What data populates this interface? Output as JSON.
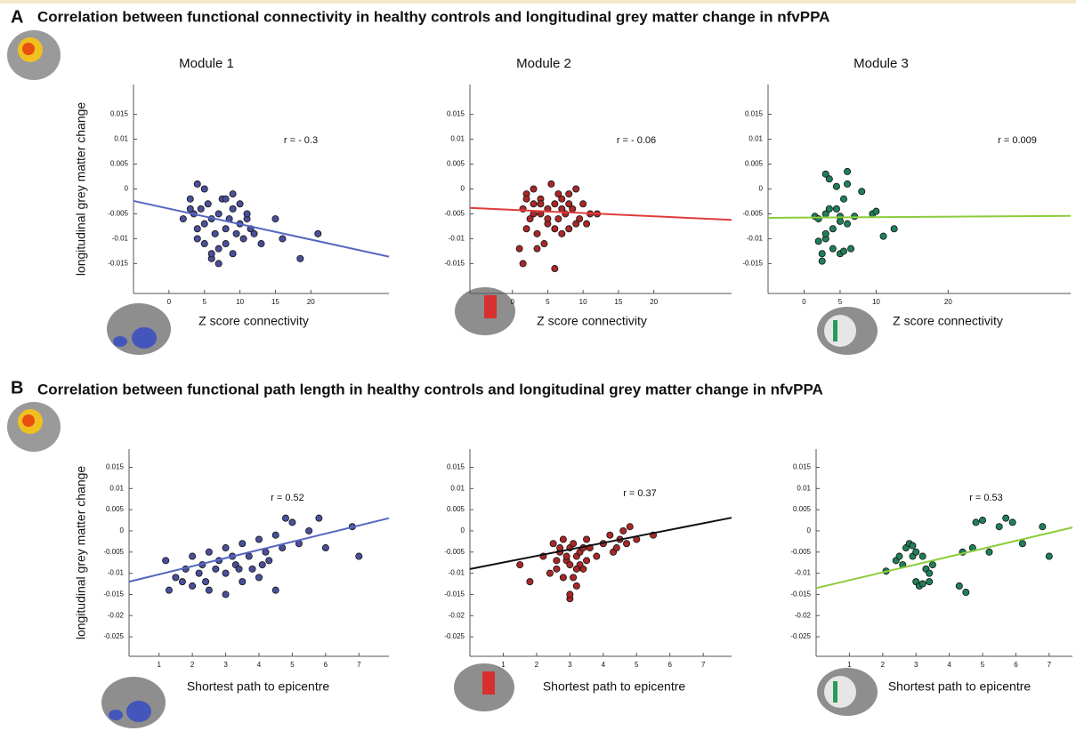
{
  "panels": [
    {
      "label": "A",
      "title": "Correlation between functional connectivity in healthy controls and longitudinal grey matter change in nfvPPA"
    },
    {
      "label": "B",
      "title": "Correlation between functional path length in healthy controls and longitudinal grey matter change in nfvPPA"
    }
  ],
  "chart_data": [
    {
      "type": "scatter",
      "title": "Module 1",
      "ylabel": "longitudinal grey matter change",
      "xlabel": "Z score connectivity",
      "annotation": "r = - 0.3",
      "xlim": [
        -5,
        31
      ],
      "ylim": [
        -0.021,
        0.021
      ],
      "xticks": [
        0,
        5,
        10,
        15,
        20
      ],
      "yticks": [
        0.015,
        0.01,
        0.005,
        0,
        -0.005,
        -0.01,
        -0.015
      ],
      "series": [
        {
          "color": "#4a4f9a",
          "x": [
            2,
            3,
            3.5,
            4,
            4,
            4.5,
            5,
            5,
            5.5,
            6,
            6,
            6.5,
            7,
            7,
            7.5,
            8,
            8,
            8.5,
            9,
            9,
            9.5,
            10,
            10,
            10.5,
            11,
            11.5,
            12,
            13,
            15,
            16,
            18.5,
            21,
            3,
            5,
            7,
            9,
            11,
            6,
            8,
            4
          ],
          "y": [
            -0.006,
            -0.002,
            -0.005,
            -0.008,
            0.001,
            -0.004,
            -0.007,
            -0.011,
            -0.003,
            -0.006,
            -0.014,
            -0.009,
            -0.005,
            -0.015,
            -0.002,
            -0.008,
            -0.011,
            -0.006,
            -0.004,
            -0.013,
            -0.009,
            -0.007,
            -0.003,
            -0.01,
            -0.006,
            -0.008,
            -0.009,
            -0.011,
            -0.006,
            -0.01,
            -0.014,
            -0.009,
            -0.004,
            0,
            -0.012,
            -0.001,
            -0.005,
            -0.013,
            -0.002,
            -0.01
          ]
        }
      ],
      "fit": {
        "color": "#5566c0",
        "x": [
          -5,
          31
        ],
        "y": [
          -0.0024,
          -0.0136
        ]
      }
    },
    {
      "type": "scatter",
      "title": "Module 2",
      "xlabel": "Z score connectivity",
      "annotation": "r = - 0.06",
      "xlim": [
        -6,
        31
      ],
      "ylim": [
        -0.021,
        0.021
      ],
      "xticks": [
        0,
        5,
        10,
        15,
        20
      ],
      "yticks": [
        0.015,
        0.01,
        0.005,
        0,
        -0.005,
        -0.01,
        -0.015
      ],
      "series": [
        {
          "color": "#a82828",
          "x": [
            1,
            1.5,
            2,
            2,
            2.5,
            3,
            3,
            3.5,
            4,
            4,
            4.5,
            5,
            5,
            5.5,
            6,
            6,
            6.5,
            7,
            7,
            7.5,
            8,
            8,
            8.5,
            9,
            9.5,
            10,
            10.5,
            11,
            12,
            1.5,
            2,
            3,
            4,
            5,
            6,
            7,
            8,
            9,
            3.5,
            6.5
          ],
          "y": [
            -0.012,
            -0.004,
            -0.001,
            -0.008,
            -0.006,
            0,
            -0.003,
            -0.009,
            -0.005,
            -0.002,
            -0.011,
            -0.004,
            -0.007,
            0.001,
            -0.003,
            -0.016,
            -0.006,
            -0.002,
            -0.009,
            -0.005,
            -0.001,
            -0.008,
            -0.004,
            0,
            -0.006,
            -0.003,
            -0.007,
            -0.005,
            -0.005,
            -0.015,
            -0.002,
            -0.005,
            -0.003,
            -0.006,
            -0.008,
            -0.004,
            -0.003,
            -0.007,
            -0.012,
            -0.001
          ]
        }
      ],
      "fit": {
        "color": "#e03c3c",
        "x": [
          -6,
          31
        ],
        "y": [
          -0.0038,
          -0.0062
        ]
      }
    },
    {
      "type": "scatter",
      "title": "Module 3",
      "xlabel": "Z score connectivity",
      "annotation": "r = 0.009",
      "xlim": [
        -5,
        37
      ],
      "ylim": [
        -0.021,
        0.021
      ],
      "xticks": [
        0,
        5,
        10,
        20
      ],
      "yticks": [
        0.015,
        0.01,
        0.005,
        0,
        -0.005,
        -0.01,
        -0.015
      ],
      "series": [
        {
          "color": "#1f8058",
          "x": [
            1.5,
            2,
            2.5,
            2.5,
            3,
            3,
            3,
            3.5,
            3.5,
            4,
            4,
            4.5,
            4.5,
            5,
            5,
            5.5,
            5.5,
            6,
            6,
            6,
            6.5,
            7,
            8,
            9.5,
            10,
            11,
            12.5,
            2,
            3,
            5
          ],
          "y": [
            -0.0055,
            -0.006,
            -0.013,
            -0.0145,
            0.003,
            -0.005,
            -0.01,
            0.002,
            -0.004,
            -0.008,
            -0.012,
            -0.004,
            0.0005,
            -0.013,
            -0.0055,
            -0.0125,
            -0.002,
            0.0035,
            0.001,
            -0.007,
            -0.012,
            -0.0055,
            -0.0005,
            -0.005,
            -0.0045,
            -0.0095,
            -0.008,
            -0.0105,
            -0.009,
            -0.0065
          ]
        }
      ],
      "fit": {
        "color": "#8ccc3c",
        "x": [
          -5,
          37
        ],
        "y": [
          -0.0058,
          -0.0054
        ]
      }
    },
    {
      "type": "scatter",
      "ylabel": "longitudinal grey matter change",
      "xlabel": "Shortest path to epicentre",
      "annotation": "r = 0.52",
      "xlim": [
        0.1,
        7.9
      ],
      "ylim": [
        -0.0296,
        0.0193
      ],
      "xticks": [
        1,
        2,
        3,
        4,
        5,
        6,
        7
      ],
      "yticks": [
        0.015,
        0.01,
        0.005,
        0,
        -0.005,
        -0.01,
        -0.015,
        -0.02,
        -0.025
      ],
      "series": [
        {
          "color": "#4a4f9a",
          "x": [
            1.2,
            1.3,
            1.5,
            1.8,
            2,
            2,
            2.2,
            2.3,
            2.5,
            2.5,
            2.7,
            2.8,
            3,
            3,
            3,
            3.2,
            3.3,
            3.5,
            3.5,
            3.7,
            3.8,
            4,
            4,
            4.2,
            4.3,
            4.5,
            4.5,
            4.7,
            4.8,
            5,
            5.2,
            5.5,
            5.8,
            6,
            6.8,
            7,
            2.4,
            3.4,
            1.7,
            4.1
          ],
          "y": [
            -0.007,
            -0.014,
            -0.011,
            -0.009,
            -0.006,
            -0.013,
            -0.01,
            -0.008,
            -0.005,
            -0.014,
            -0.009,
            -0.007,
            -0.004,
            -0.01,
            -0.015,
            -0.006,
            -0.008,
            -0.003,
            -0.012,
            -0.006,
            -0.009,
            -0.002,
            -0.011,
            -0.005,
            -0.007,
            -0.001,
            -0.014,
            -0.004,
            0.003,
            0.002,
            -0.003,
            0,
            0.003,
            -0.004,
            0.001,
            -0.006,
            -0.012,
            -0.009,
            -0.012,
            -0.008
          ]
        }
      ],
      "fit": {
        "color": "#5566c0",
        "x": [
          0.1,
          7.9
        ],
        "y": [
          -0.012,
          0.003
        ]
      }
    },
    {
      "type": "scatter",
      "xlabel": "Shortest path to epicentre",
      "annotation": "r = 0.37",
      "xlim": [
        0,
        7.85
      ],
      "ylim": [
        -0.0296,
        0.0193
      ],
      "xticks": [
        1,
        2,
        3,
        4,
        5,
        6,
        7
      ],
      "yticks": [
        0.015,
        0.01,
        0.005,
        0,
        -0.005,
        -0.01,
        -0.015,
        -0.02,
        -0.025
      ],
      "series": [
        {
          "color": "#a82828",
          "x": [
            1.5,
            1.8,
            2.2,
            2.5,
            2.6,
            2.7,
            2.8,
            2.8,
            2.9,
            3,
            3,
            3,
            3.1,
            3.2,
            3.2,
            3.3,
            3.4,
            3.5,
            3.5,
            3.6,
            3.8,
            4,
            4.2,
            4.3,
            4.5,
            4.6,
            4.7,
            4.8,
            5,
            5.5,
            2.4,
            2.9,
            3.1,
            3.3,
            2.7,
            3,
            3.4,
            2.6,
            4.4,
            3.2
          ],
          "y": [
            -0.008,
            -0.012,
            -0.006,
            -0.003,
            -0.009,
            -0.005,
            -0.002,
            -0.011,
            -0.007,
            -0.004,
            -0.016,
            -0.008,
            -0.003,
            -0.006,
            -0.013,
            -0.005,
            -0.009,
            -0.002,
            -0.007,
            -0.004,
            -0.006,
            -0.003,
            -0.001,
            -0.005,
            -0.002,
            0,
            -0.003,
            0.001,
            -0.002,
            -0.001,
            -0.01,
            -0.006,
            -0.011,
            -0.008,
            -0.004,
            -0.015,
            -0.004,
            -0.007,
            -0.004,
            -0.009
          ]
        }
      ],
      "fit": {
        "color": "#111111",
        "x": [
          0,
          7.85
        ],
        "y": [
          -0.009,
          0.0031
        ]
      }
    },
    {
      "type": "scatter",
      "xlabel": "Shortest path to epicentre",
      "annotation": "r =  0.53",
      "xlim": [
        0,
        7.7
      ],
      "ylim": [
        -0.0296,
        0.0193
      ],
      "xticks": [
        1,
        2,
        3,
        4,
        5,
        6,
        7
      ],
      "yticks": [
        0.015,
        0.01,
        0.005,
        0,
        -0.005,
        -0.01,
        -0.015,
        -0.02,
        -0.025
      ],
      "series": [
        {
          "color": "#1f8058",
          "x": [
            2.1,
            2.4,
            2.6,
            2.7,
            2.8,
            2.9,
            3,
            3,
            3.1,
            3.2,
            3.3,
            3.4,
            3.4,
            3.5,
            2.5,
            2.9,
            3.2,
            4.3,
            4.4,
            4.5,
            4.7,
            4.8,
            5,
            5.2,
            5.5,
            5.7,
            5.9,
            6.2,
            6.8,
            7
          ],
          "y": [
            -0.0095,
            -0.007,
            -0.008,
            -0.004,
            -0.003,
            -0.006,
            -0.012,
            -0.005,
            -0.013,
            -0.006,
            -0.009,
            -0.012,
            -0.01,
            -0.008,
            -0.006,
            -0.0035,
            -0.0125,
            -0.013,
            -0.005,
            -0.0145,
            -0.004,
            0.002,
            0.0025,
            -0.005,
            0.001,
            0.003,
            0.002,
            -0.003,
            0.001,
            -0.006
          ]
        }
      ],
      "fit": {
        "color": "#8ccc3c",
        "x": [
          0,
          7.7
        ],
        "y": [
          -0.0135,
          0.0008
        ]
      }
    }
  ]
}
